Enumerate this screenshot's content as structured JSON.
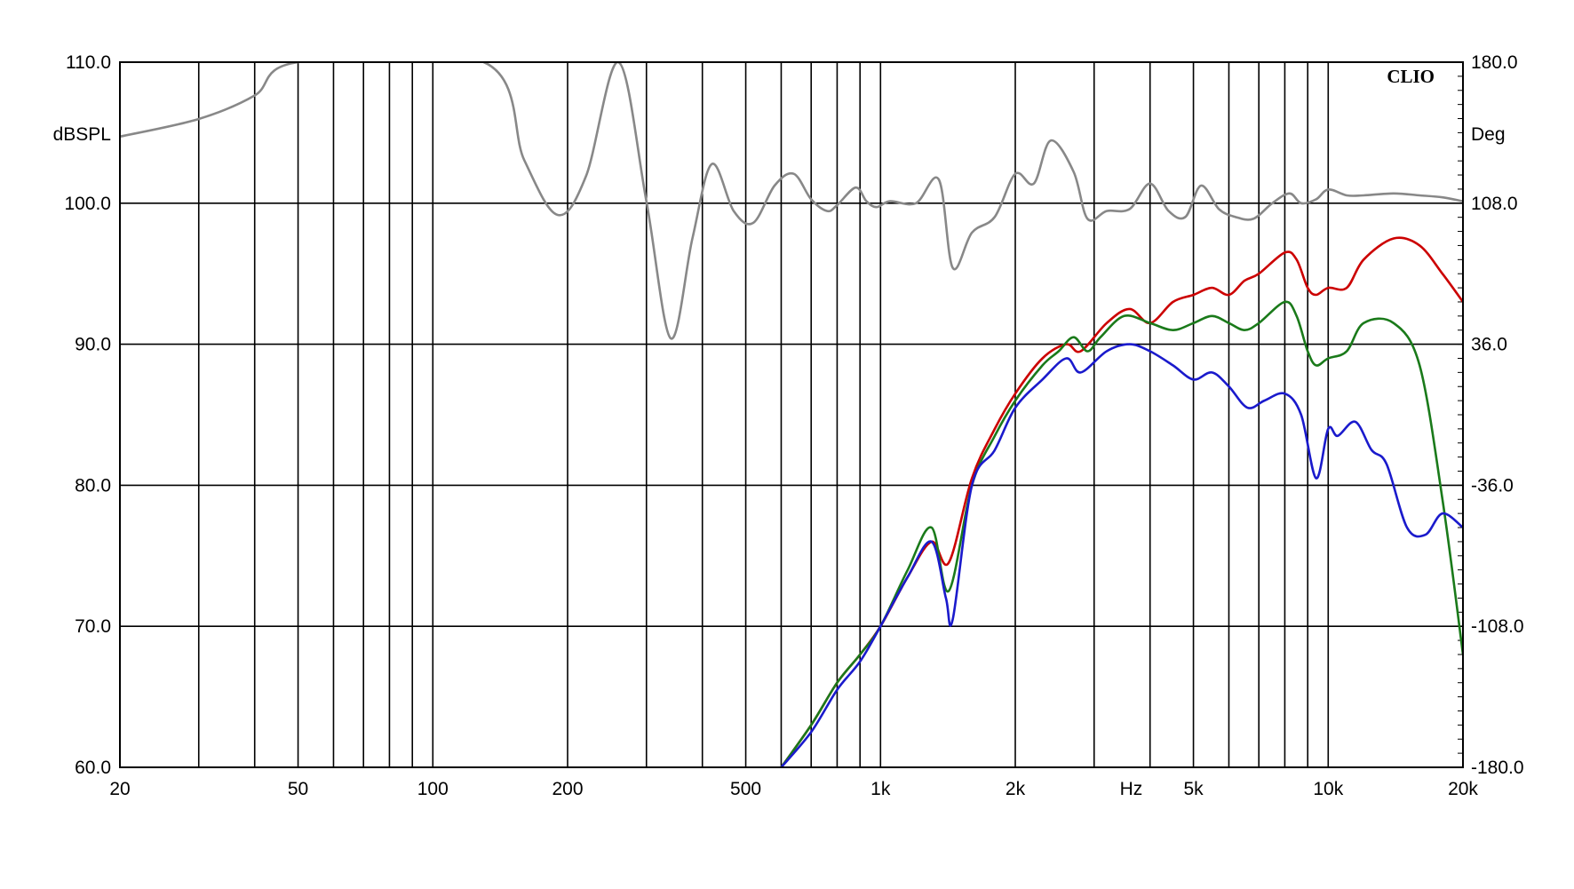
{
  "chart_data": {
    "type": "line",
    "brand": "CLIO",
    "x_scale": "log",
    "xlim": [
      20,
      20000
    ],
    "ylim": [
      60,
      110
    ],
    "y2lim": [
      -180,
      180
    ],
    "xlabel": "Hz",
    "ylabel": "dBSPL",
    "y2label": "Deg",
    "grid": true,
    "x_ticks": [
      20,
      50,
      100,
      200,
      500,
      1000,
      2000,
      5000,
      10000,
      20000
    ],
    "x_tick_labels": [
      "20",
      "50",
      "100",
      "200",
      "500",
      "1k",
      "2k",
      "5k",
      "10k",
      "20k"
    ],
    "y_ticks": [
      60,
      70,
      80,
      90,
      100,
      110
    ],
    "y_tick_labels": [
      "60.0",
      "70.0",
      "80.0",
      "90.0",
      "100.0",
      "110.0"
    ],
    "y2_ticks": [
      -180,
      -108,
      -36,
      36,
      108,
      180
    ],
    "y2_tick_labels": [
      "-180.0",
      "-108.0",
      "-36.0",
      "36.0",
      "108.0",
      "180.0"
    ],
    "series": [
      {
        "color": "#888888",
        "axis": "right",
        "x": [
          20,
          30,
          40,
          50,
          130,
          160,
          190,
          220,
          260,
          300,
          340,
          380,
          420,
          470,
          520,
          580,
          640,
          700,
          760,
          800,
          880,
          930,
          980,
          1050,
          1200,
          1350,
          1450,
          1600,
          1800,
          2000,
          2200,
          2400,
          2700,
          2900,
          3200,
          3600,
          4000,
          4400,
          4800,
          5200,
          5700,
          6200,
          6800,
          7500,
          8200,
          8700,
          9400,
          10000,
          11000,
          12000,
          14000,
          16000,
          18000,
          20000
        ],
        "values": [
          142,
          151,
          163,
          180,
          180,
          130,
          102,
          122,
          180,
          109,
          39,
          90,
          128,
          104,
          98,
          117,
          123,
          110,
          104,
          107,
          116,
          109,
          106,
          109,
          108,
          120,
          75,
          93,
          101,
          123,
          118,
          140,
          124,
          100,
          104,
          105,
          118,
          104,
          101,
          117,
          105,
          101,
          100,
          108,
          113,
          108,
          110,
          115,
          112,
          112,
          113,
          112,
          111,
          109
        ]
      },
      {
        "color": "#cc0000",
        "axis": "left",
        "x": [
          600,
          700,
          800,
          900,
          1000,
          1150,
          1300,
          1420,
          1600,
          1800,
          2000,
          2300,
          2600,
          2800,
          3200,
          3600,
          4000,
          4500,
          5000,
          5500,
          6000,
          6500,
          7000,
          8000,
          8500,
          9000,
          9400,
          10000,
          11000,
          12000,
          14000,
          16000,
          18000,
          20000
        ],
        "values": [
          60,
          63,
          66,
          68,
          70,
          73.5,
          76,
          74.5,
          80.5,
          84,
          86.5,
          89,
          90,
          89.5,
          91.5,
          92.5,
          91.5,
          93,
          93.5,
          94,
          93.5,
          94.5,
          95,
          96.5,
          96,
          94,
          93.5,
          94,
          94,
          96,
          97.5,
          97,
          95,
          93
        ]
      },
      {
        "color": "#1a7a1a",
        "axis": "left",
        "x": [
          600,
          700,
          800,
          900,
          1000,
          1150,
          1300,
          1420,
          1600,
          1800,
          2000,
          2300,
          2500,
          2700,
          2900,
          3100,
          3500,
          4000,
          4500,
          5000,
          5500,
          6000,
          6500,
          7000,
          8000,
          8500,
          9000,
          9400,
          10000,
          11000,
          12000,
          14000,
          16000,
          18000,
          20000
        ],
        "values": [
          60,
          63,
          66,
          68,
          70,
          74,
          77,
          72.5,
          80,
          83.5,
          86,
          88.5,
          89.5,
          90.5,
          89.5,
          90.5,
          92,
          91.5,
          91,
          91.5,
          92,
          91.5,
          91,
          91.5,
          93,
          92,
          89.5,
          88.5,
          89,
          89.5,
          91.5,
          91.5,
          88.5,
          79,
          68
        ]
      },
      {
        "color": "#1a1acc",
        "axis": "left",
        "x": [
          600,
          700,
          800,
          900,
          1000,
          1150,
          1300,
          1400,
          1450,
          1600,
          1800,
          2000,
          2300,
          2600,
          2800,
          3200,
          3600,
          4000,
          4500,
          5000,
          5500,
          6000,
          6600,
          7200,
          8000,
          8700,
          9400,
          10000,
          10500,
          11500,
          12500,
          13500,
          15000,
          16500,
          18000,
          20000
        ],
        "values": [
          60,
          62.5,
          65.5,
          67.5,
          70,
          73.5,
          76,
          72,
          70.5,
          80,
          82.5,
          85.5,
          87.5,
          89,
          88,
          89.5,
          90,
          89.5,
          88.5,
          87.5,
          88,
          87,
          85.5,
          86,
          86.5,
          85,
          80.5,
          84,
          83.5,
          84.5,
          82.5,
          81.5,
          77,
          76.5,
          78,
          77
        ]
      }
    ]
  }
}
